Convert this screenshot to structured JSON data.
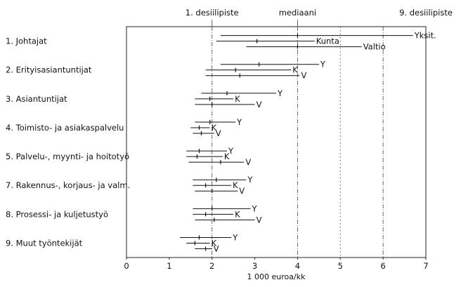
{
  "chart_data": {
    "type": "range",
    "title": "",
    "xlabel": "1 000 euroa/kk",
    "ylabel": "",
    "xlim": [
      0,
      7
    ],
    "xticks": [
      "0",
      "1",
      "2",
      "3",
      "4",
      "5",
      "6",
      "7"
    ],
    "header_labels": [
      {
        "text": "1. desiilipiste",
        "x": 2
      },
      {
        "text": "mediaani",
        "x": 4
      },
      {
        "text": "9. desiilipiste",
        "x": 7
      }
    ],
    "categories": [
      "1. Johtajat",
      "2. Erityisasiantuntijat",
      "3. Asiantuntijat",
      "4. Toimisto- ja asiakaspalvelu",
      "5. Palvelu-, myynti- ja hoitotyö",
      "7. Rakennus-, korjaus- ja valm.",
      "8. Prosessi- ja kuljetustyö",
      "9. Muut työntekijät"
    ],
    "series": [
      {
        "name": "Yksit.",
        "label": [
          "Yksit.",
          "Y",
          "Y",
          "Y",
          "Y",
          "Y",
          "Y",
          "Y"
        ],
        "ranges": [
          {
            "low": 2.2,
            "median": 4.0,
            "high": 6.7
          },
          {
            "low": 2.2,
            "median": 3.1,
            "high": 4.5
          },
          {
            "low": 1.75,
            "median": 2.35,
            "high": 3.5
          },
          {
            "low": 1.6,
            "median": 1.95,
            "high": 2.55
          },
          {
            "low": 1.4,
            "median": 1.7,
            "high": 2.35
          },
          {
            "low": 1.55,
            "median": 2.1,
            "high": 2.8
          },
          {
            "low": 1.55,
            "median": 2.0,
            "high": 2.9
          },
          {
            "low": 1.25,
            "median": 1.7,
            "high": 2.45
          }
        ]
      },
      {
        "name": "Kunta",
        "label": [
          "Kunta",
          "K",
          "K",
          "K",
          "K",
          "K",
          "K",
          "K"
        ],
        "ranges": [
          {
            "low": 2.1,
            "median": 3.05,
            "high": 4.4
          },
          {
            "low": 1.85,
            "median": 2.55,
            "high": 3.85
          },
          {
            "low": 1.6,
            "median": 1.95,
            "high": 2.5
          },
          {
            "low": 1.5,
            "median": 1.7,
            "high": 1.95
          },
          {
            "low": 1.4,
            "median": 1.65,
            "high": 2.25
          },
          {
            "low": 1.55,
            "median": 1.85,
            "high": 2.45
          },
          {
            "low": 1.55,
            "median": 1.85,
            "high": 2.5
          },
          {
            "low": 1.4,
            "median": 1.6,
            "high": 1.95
          }
        ]
      },
      {
        "name": "Valtio",
        "label": [
          "Valtio",
          "V",
          "V",
          "V",
          "V",
          "V",
          "V",
          "V"
        ],
        "ranges": [
          {
            "low": 2.8,
            "median": 4.0,
            "high": 5.5
          },
          {
            "low": 1.85,
            "median": 2.65,
            "high": 4.05
          },
          {
            "low": 1.6,
            "median": 2.0,
            "high": 3.0
          },
          {
            "low": 1.55,
            "median": 1.75,
            "high": 2.05
          },
          {
            "low": 1.45,
            "median": 2.2,
            "high": 2.75
          },
          {
            "low": 1.6,
            "median": 2.0,
            "high": 2.6
          },
          {
            "low": 1.6,
            "median": 2.05,
            "high": 3.0
          },
          {
            "low": 1.6,
            "median": 1.85,
            "high": 2.0
          }
        ]
      }
    ],
    "reference_lines": [
      {
        "x": 2,
        "style": "dash-dot"
      },
      {
        "x": 4,
        "style": "dash-dot"
      },
      {
        "x": 5,
        "style": "dotted"
      },
      {
        "x": 6,
        "style": "dash-dot"
      }
    ],
    "grid": false
  }
}
